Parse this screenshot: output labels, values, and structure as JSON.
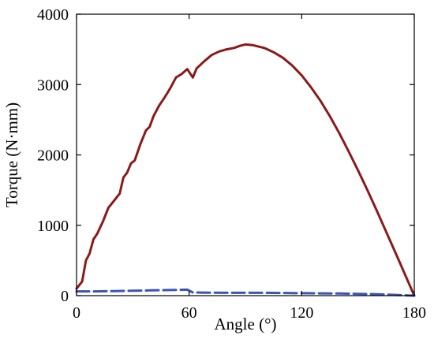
{
  "chart_data": {
    "type": "line",
    "xlabel": "Angle (°)",
    "ylabel": "Torque (N·mm)",
    "xlim": [
      0,
      180
    ],
    "ylim": [
      0,
      4000
    ],
    "xticks": [
      0,
      60,
      120,
      180
    ],
    "yticks": [
      0,
      1000,
      2000,
      3000,
      4000
    ],
    "grid": false,
    "legend": "none",
    "series": [
      {
        "color": "#8b1a1a",
        "style": "solid",
        "points": [
          [
            0,
            100
          ],
          [
            3,
            200
          ],
          [
            5,
            500
          ],
          [
            7,
            600
          ],
          [
            9,
            800
          ],
          [
            11,
            880
          ],
          [
            14,
            1050
          ],
          [
            17,
            1250
          ],
          [
            20,
            1350
          ],
          [
            23,
            1450
          ],
          [
            25,
            1680
          ],
          [
            27,
            1750
          ],
          [
            29,
            1880
          ],
          [
            31,
            1920
          ],
          [
            34,
            2150
          ],
          [
            37,
            2350
          ],
          [
            39,
            2400
          ],
          [
            41,
            2550
          ],
          [
            44,
            2700
          ],
          [
            47,
            2820
          ],
          [
            50,
            2950
          ],
          [
            53,
            3100
          ],
          [
            56,
            3150
          ],
          [
            59,
            3220
          ],
          [
            62,
            3100
          ],
          [
            64,
            3230
          ],
          [
            68,
            3330
          ],
          [
            72,
            3420
          ],
          [
            76,
            3470
          ],
          [
            80,
            3500
          ],
          [
            84,
            3520
          ],
          [
            87,
            3550
          ],
          [
            90,
            3570
          ],
          [
            94,
            3560
          ],
          [
            100,
            3520
          ],
          [
            105,
            3460
          ],
          [
            110,
            3380
          ],
          [
            115,
            3270
          ],
          [
            120,
            3130
          ],
          [
            125,
            2960
          ],
          [
            130,
            2770
          ],
          [
            135,
            2550
          ],
          [
            140,
            2310
          ],
          [
            145,
            2050
          ],
          [
            150,
            1780
          ],
          [
            155,
            1500
          ],
          [
            160,
            1210
          ],
          [
            165,
            910
          ],
          [
            170,
            610
          ],
          [
            175,
            305
          ],
          [
            180,
            0
          ]
        ]
      },
      {
        "color": "#3a55b4",
        "style": "dashed",
        "points": [
          [
            0,
            60
          ],
          [
            10,
            60
          ],
          [
            20,
            65
          ],
          [
            30,
            70
          ],
          [
            40,
            75
          ],
          [
            50,
            80
          ],
          [
            59,
            85
          ],
          [
            62,
            45
          ],
          [
            80,
            40
          ],
          [
            100,
            40
          ],
          [
            120,
            35
          ],
          [
            140,
            30
          ],
          [
            160,
            20
          ],
          [
            180,
            0
          ]
        ]
      }
    ]
  }
}
